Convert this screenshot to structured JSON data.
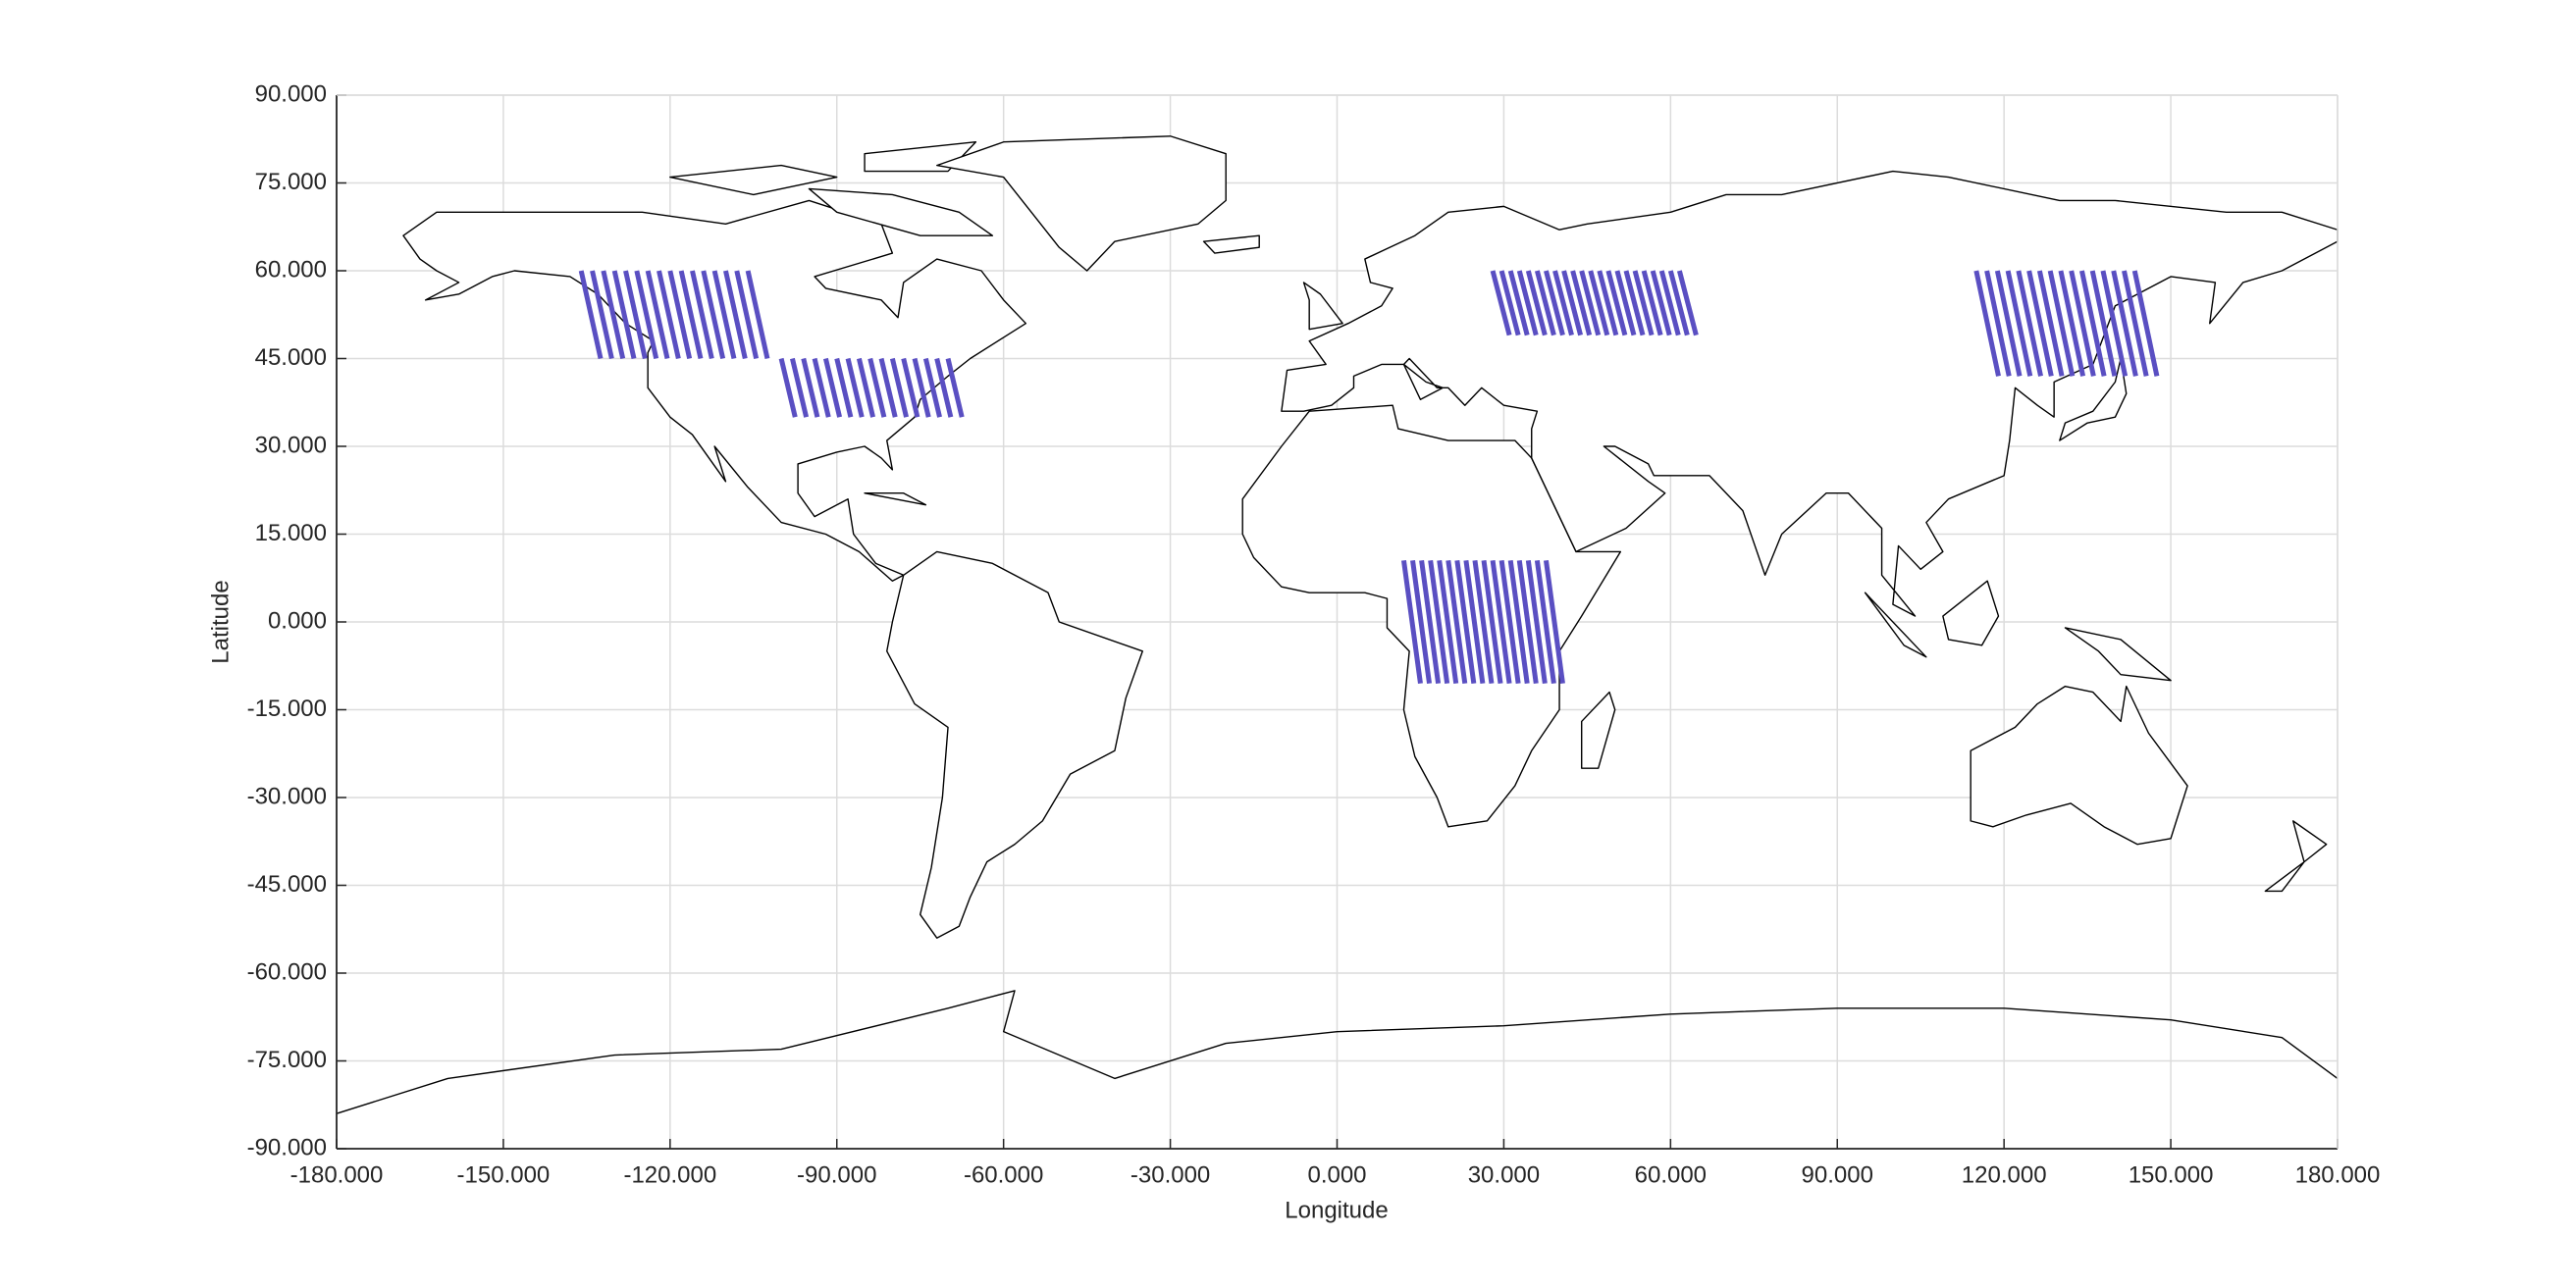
{
  "chart_data": {
    "type": "map",
    "xlabel": "Longitude",
    "ylabel": "Latitude",
    "xlim": [
      -180,
      180
    ],
    "ylim": [
      -90,
      90
    ],
    "xticks": [
      {
        "value": -180,
        "label": "-180.000"
      },
      {
        "value": -150,
        "label": "-150.000"
      },
      {
        "value": -120,
        "label": "-120.000"
      },
      {
        "value": -90,
        "label": "-90.000"
      },
      {
        "value": -60,
        "label": "-60.000"
      },
      {
        "value": -30,
        "label": "-30.000"
      },
      {
        "value": 0,
        "label": "0.000"
      },
      {
        "value": 30,
        "label": "30.000"
      },
      {
        "value": 60,
        "label": "60.000"
      },
      {
        "value": 90,
        "label": "90.000"
      },
      {
        "value": 120,
        "label": "120.000"
      },
      {
        "value": 150,
        "label": "150.000"
      },
      {
        "value": 180,
        "label": "180.000"
      }
    ],
    "yticks": [
      {
        "value": -90,
        "label": "-90.000"
      },
      {
        "value": -75,
        "label": "-75.000"
      },
      {
        "value": -60,
        "label": "-60.000"
      },
      {
        "value": -45,
        "label": "-45.000"
      },
      {
        "value": -30,
        "label": "-30.000"
      },
      {
        "value": -15,
        "label": "-15.000"
      },
      {
        "value": 0,
        "label": "0.000"
      },
      {
        "value": 15,
        "label": "15.000"
      },
      {
        "value": 30,
        "label": "30.000"
      },
      {
        "value": 45,
        "label": "45.000"
      },
      {
        "value": 60,
        "label": "60.000"
      },
      {
        "value": 75,
        "label": "75.000"
      },
      {
        "value": 90,
        "label": "90.000"
      }
    ],
    "grid": true,
    "color": "#5a4fc2",
    "regions": [
      {
        "lat": [
          60,
          45
        ],
        "lon_top": [
          -136,
          -134,
          -132,
          -130,
          -128,
          -126,
          -124,
          -122,
          -120,
          -118,
          -116,
          -114,
          -112,
          -110,
          -108,
          -106
        ],
        "lon_bottom": [
          -132.5,
          -130.5,
          -128.5,
          -126.5,
          -124.5,
          -122.5,
          -120.5,
          -118.5,
          -116.5,
          -114.5,
          -112.5,
          -110.5,
          -108.5,
          -106.5,
          -104.5,
          -102.5
        ]
      },
      {
        "lat": [
          45,
          35
        ],
        "lon_top": [
          -100,
          -98,
          -96,
          -94,
          -92,
          -90,
          -88,
          -86,
          -84,
          -82,
          -80,
          -78,
          -76,
          -74,
          -72,
          -70
        ],
        "lon_bottom": [
          -97.5,
          -95.5,
          -93.5,
          -91.5,
          -89.5,
          -87.5,
          -85.5,
          -83.5,
          -81.5,
          -79.5,
          -77.5,
          -75.5,
          -73.5,
          -71.5,
          -69.5,
          -67.5
        ]
      },
      {
        "lat": [
          60,
          49
        ],
        "lon_top": [
          28,
          29.6,
          31.2,
          32.8,
          34.4,
          36,
          37.6,
          39.2,
          40.8,
          42.4,
          44,
          45.6,
          47.2,
          48.8,
          50.4,
          52,
          53.6,
          55.2,
          56.8,
          58.4,
          60,
          61.6
        ],
        "lon_bottom": [
          31,
          32.6,
          34.2,
          35.8,
          37.4,
          39,
          40.6,
          42.2,
          43.8,
          45.4,
          47,
          48.6,
          50.2,
          51.8,
          53.4,
          55,
          56.6,
          58.2,
          59.8,
          61.4,
          63,
          64.6
        ]
      },
      {
        "lat": [
          10.5,
          -10.5
        ],
        "lon_top": [
          12,
          13.6,
          15.2,
          16.8,
          18.4,
          20,
          21.6,
          23.2,
          24.8,
          26.4,
          28,
          29.6,
          31.2,
          32.8,
          34.4,
          36,
          37.6
        ],
        "lon_bottom": [
          15,
          16.6,
          18.2,
          19.8,
          21.4,
          23,
          24.6,
          26.2,
          27.8,
          29.4,
          31,
          32.6,
          34.2,
          35.8,
          37.4,
          39,
          40.6
        ]
      },
      {
        "lat": [
          60,
          42
        ],
        "lon_top": [
          115,
          116.9,
          118.8,
          120.7,
          122.6,
          124.5,
          126.4,
          128.3,
          130.2,
          132.1,
          134,
          135.9,
          137.8,
          139.7,
          141.6,
          143.5
        ],
        "lon_bottom": [
          119,
          120.9,
          122.8,
          124.7,
          126.6,
          128.5,
          130.4,
          132.3,
          134.2,
          136.1,
          138,
          139.9,
          141.8,
          143.7,
          145.6,
          147.5
        ]
      }
    ]
  }
}
